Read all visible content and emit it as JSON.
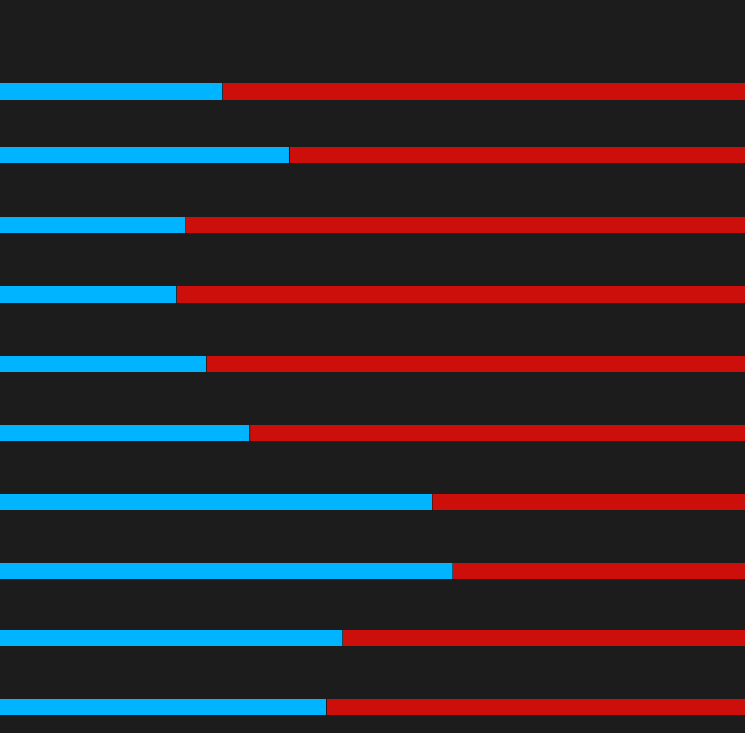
{
  "chart_data": {
    "type": "stacked-bar",
    "orientation": "horizontal",
    "xlim": [
      0,
      100
    ],
    "series": [
      {
        "name": null,
        "color": "#00b4ff",
        "values": [
          29.8,
          38.8,
          24.8,
          23.6,
          27.7,
          33.5,
          58.0,
          60.7,
          45.9,
          43.8
        ]
      },
      {
        "name": null,
        "color": "#cc0f0a",
        "values": [
          70.2,
          61.2,
          75.2,
          76.4,
          72.3,
          66.5,
          42.0,
          39.3,
          54.1,
          56.2
        ]
      }
    ]
  }
}
